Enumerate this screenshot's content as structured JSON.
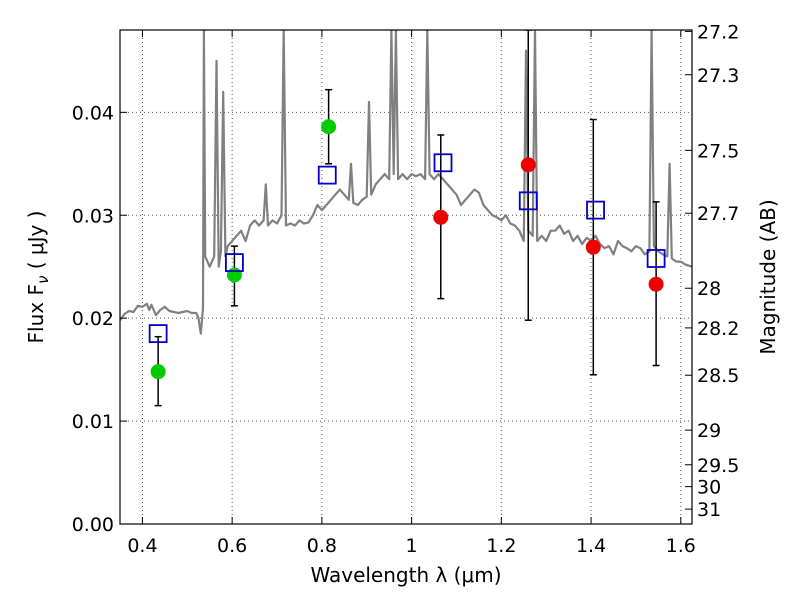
{
  "chart_data": {
    "type": "scatter",
    "xlabel": "Wavelength  λ (μm)",
    "ylabel": "Flux  F",
    "ylabel_subscript": "ν",
    "ylabel_unit": " ( μJy )",
    "right_ylabel": "Magnitude (AB)",
    "xlim": [
      0.35,
      1.625
    ],
    "ylim": [
      0.0,
      0.048
    ],
    "grid": true,
    "x_ticks": [
      0.4,
      0.6,
      0.8,
      1.0,
      1.2,
      1.4,
      1.6
    ],
    "x_tick_labels": [
      "0.4",
      "0.6",
      "0.8",
      "1",
      "1.2",
      "1.4",
      "1.6"
    ],
    "y_ticks": [
      0.0,
      0.01,
      0.02,
      0.03,
      0.04
    ],
    "y_tick_labels": [
      "0.00",
      "0.01",
      "0.02",
      "0.03",
      "0.04"
    ],
    "right_ticks": [
      {
        "mag": 27.2,
        "label": "27.2"
      },
      {
        "mag": 27.3,
        "label": "27.3"
      },
      {
        "mag": 27.5,
        "label": "27.5"
      },
      {
        "mag": 27.7,
        "label": "27.7"
      },
      {
        "mag": 28.0,
        "label": "28"
      },
      {
        "mag": 28.2,
        "label": "28.2"
      },
      {
        "mag": 28.5,
        "label": "28.5"
      },
      {
        "mag": 29.0,
        "label": "29"
      },
      {
        "mag": 29.5,
        "label": "29.5"
      },
      {
        "mag": 30.0,
        "label": "30"
      },
      {
        "mag": 31.0,
        "label": "31"
      }
    ],
    "colors": {
      "sed": "#808080",
      "green": "#00cc00",
      "red": "#ee0000",
      "model": "#0000cc",
      "error": "#000000",
      "grid": "#555555"
    },
    "sed_points": [
      [
        0.35,
        0.0198
      ],
      [
        0.36,
        0.0204
      ],
      [
        0.37,
        0.0207
      ],
      [
        0.38,
        0.0206
      ],
      [
        0.39,
        0.0212
      ],
      [
        0.4,
        0.0211
      ],
      [
        0.41,
        0.0214
      ],
      [
        0.415,
        0.0208
      ],
      [
        0.42,
        0.0213
      ],
      [
        0.43,
        0.0203
      ],
      [
        0.44,
        0.0208
      ],
      [
        0.45,
        0.0211
      ],
      [
        0.46,
        0.0207
      ],
      [
        0.47,
        0.0206
      ],
      [
        0.48,
        0.0205
      ],
      [
        0.49,
        0.0206
      ],
      [
        0.5,
        0.0207
      ],
      [
        0.51,
        0.0205
      ],
      [
        0.52,
        0.0205
      ],
      [
        0.525,
        0.02
      ],
      [
        0.53,
        0.0185
      ],
      [
        0.535,
        0.021
      ],
      [
        0.537,
        0.048
      ],
      [
        0.54,
        0.026
      ],
      [
        0.55,
        0.025
      ],
      [
        0.56,
        0.026
      ],
      [
        0.565,
        0.045
      ],
      [
        0.57,
        0.025
      ],
      [
        0.575,
        0.0265
      ],
      [
        0.58,
        0.042
      ],
      [
        0.585,
        0.026
      ],
      [
        0.59,
        0.027
      ],
      [
        0.6,
        0.0275
      ],
      [
        0.61,
        0.028
      ],
      [
        0.62,
        0.0285
      ],
      [
        0.63,
        0.0275
      ],
      [
        0.64,
        0.029
      ],
      [
        0.65,
        0.0295
      ],
      [
        0.66,
        0.029
      ],
      [
        0.67,
        0.0295
      ],
      [
        0.675,
        0.033
      ],
      [
        0.68,
        0.029
      ],
      [
        0.69,
        0.0295
      ],
      [
        0.7,
        0.0292
      ],
      [
        0.71,
        0.03
      ],
      [
        0.715,
        0.048
      ],
      [
        0.72,
        0.029
      ],
      [
        0.73,
        0.0292
      ],
      [
        0.74,
        0.029
      ],
      [
        0.75,
        0.0295
      ],
      [
        0.76,
        0.0292
      ],
      [
        0.77,
        0.0293
      ],
      [
        0.78,
        0.03
      ],
      [
        0.79,
        0.031
      ],
      [
        0.8,
        0.0305
      ],
      [
        0.81,
        0.031
      ],
      [
        0.82,
        0.0315
      ],
      [
        0.83,
        0.032
      ],
      [
        0.84,
        0.0325
      ],
      [
        0.85,
        0.032
      ],
      [
        0.86,
        0.0315
      ],
      [
        0.865,
        0.035
      ],
      [
        0.87,
        0.0312
      ],
      [
        0.88,
        0.031
      ],
      [
        0.89,
        0.0315
      ],
      [
        0.9,
        0.0318
      ],
      [
        0.905,
        0.041
      ],
      [
        0.91,
        0.032
      ],
      [
        0.92,
        0.033
      ],
      [
        0.93,
        0.0335
      ],
      [
        0.94,
        0.034
      ],
      [
        0.95,
        0.0335
      ],
      [
        0.955,
        0.048
      ],
      [
        0.96,
        0.034
      ],
      [
        0.965,
        0.048
      ],
      [
        0.97,
        0.0335
      ],
      [
        0.98,
        0.034
      ],
      [
        0.99,
        0.0335
      ],
      [
        1.0,
        0.034
      ],
      [
        1.01,
        0.0338
      ],
      [
        1.02,
        0.034
      ],
      [
        1.03,
        0.0335
      ],
      [
        1.035,
        0.048
      ],
      [
        1.04,
        0.034
      ],
      [
        1.05,
        0.0335
      ],
      [
        1.06,
        0.034
      ],
      [
        1.07,
        0.0335
      ],
      [
        1.08,
        0.033
      ],
      [
        1.09,
        0.0325
      ],
      [
        1.1,
        0.032
      ],
      [
        1.11,
        0.031
      ],
      [
        1.12,
        0.0315
      ],
      [
        1.13,
        0.032
      ],
      [
        1.14,
        0.0325
      ],
      [
        1.15,
        0.0322
      ],
      [
        1.16,
        0.031
      ],
      [
        1.17,
        0.0305
      ],
      [
        1.18,
        0.03
      ],
      [
        1.19,
        0.0298
      ],
      [
        1.2,
        0.0295
      ],
      [
        1.21,
        0.03
      ],
      [
        1.22,
        0.0292
      ],
      [
        1.23,
        0.029
      ],
      [
        1.24,
        0.0285
      ],
      [
        1.25,
        0.0275
      ],
      [
        1.255,
        0.046
      ],
      [
        1.26,
        0.0285
      ],
      [
        1.27,
        0.028
      ],
      [
        1.275,
        0.048
      ],
      [
        1.28,
        0.0275
      ],
      [
        1.29,
        0.028
      ],
      [
        1.3,
        0.0275
      ],
      [
        1.31,
        0.0285
      ],
      [
        1.32,
        0.0285
      ],
      [
        1.33,
        0.029
      ],
      [
        1.34,
        0.0282
      ],
      [
        1.35,
        0.0285
      ],
      [
        1.36,
        0.0275
      ],
      [
        1.37,
        0.028
      ],
      [
        1.38,
        0.0272
      ],
      [
        1.39,
        0.0278
      ],
      [
        1.4,
        0.0275
      ],
      [
        1.41,
        0.028
      ],
      [
        1.42,
        0.0272
      ],
      [
        1.43,
        0.0268
      ],
      [
        1.44,
        0.027
      ],
      [
        1.45,
        0.0262
      ],
      [
        1.46,
        0.0275
      ],
      [
        1.47,
        0.027
      ],
      [
        1.48,
        0.0268
      ],
      [
        1.49,
        0.0265
      ],
      [
        1.5,
        0.027
      ],
      [
        1.51,
        0.0268
      ],
      [
        1.52,
        0.0262
      ],
      [
        1.53,
        0.0265
      ],
      [
        1.535,
        0.048
      ],
      [
        1.54,
        0.027
      ],
      [
        1.55,
        0.0265
      ],
      [
        1.56,
        0.0262
      ],
      [
        1.57,
        0.026
      ],
      [
        1.575,
        0.035
      ],
      [
        1.58,
        0.0258
      ],
      [
        1.59,
        0.0255
      ],
      [
        1.6,
        0.0255
      ],
      [
        1.61,
        0.0252
      ],
      [
        1.625,
        0.025
      ]
    ],
    "series": [
      {
        "marker": "circle",
        "color": "green",
        "points": [
          {
            "x": 0.435,
            "y": 0.0148,
            "err": [
              0.0115,
              0.0182
            ]
          },
          {
            "x": 0.605,
            "y": 0.0242,
            "err": [
              0.0212,
              0.027
            ]
          },
          {
            "x": 0.815,
            "y": 0.0386,
            "err": [
              0.035,
              0.0422
            ]
          }
        ]
      },
      {
        "marker": "circle",
        "color": "red",
        "points": [
          {
            "x": 1.065,
            "y": 0.0298,
            "err": [
              0.0219,
              0.0378
            ]
          },
          {
            "x": 1.26,
            "y": 0.0349,
            "err": [
              0.0198,
              0.048
            ]
          },
          {
            "x": 1.405,
            "y": 0.0269,
            "err": [
              0.0145,
              0.0393
            ]
          },
          {
            "x": 1.545,
            "y": 0.0233,
            "err": [
              0.0154,
              0.0313
            ]
          }
        ]
      },
      {
        "marker": "square",
        "color": "model",
        "points": [
          {
            "x": 0.435,
            "y": 0.0185
          },
          {
            "x": 0.605,
            "y": 0.0254
          },
          {
            "x": 0.812,
            "y": 0.0339
          },
          {
            "x": 1.07,
            "y": 0.0351
          },
          {
            "x": 1.26,
            "y": 0.0314
          },
          {
            "x": 1.41,
            "y": 0.0305
          },
          {
            "x": 1.545,
            "y": 0.0258
          }
        ]
      }
    ]
  }
}
